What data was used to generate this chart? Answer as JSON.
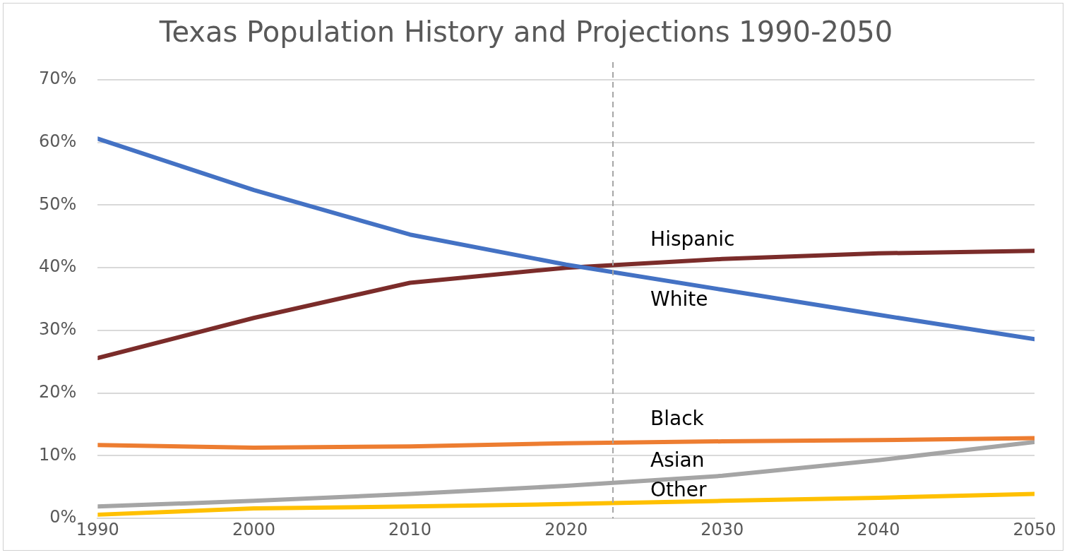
{
  "chart_data": {
    "type": "line",
    "title": "Texas Population History and Projections 1990-2050",
    "x": [
      1990,
      2000,
      2010,
      2020,
      2030,
      2040,
      2050
    ],
    "series": [
      {
        "name": "White",
        "color": "#4472c4",
        "values": [
          60.6,
          52.4,
          45.3,
          40.5,
          36.5,
          32.5,
          28.6
        ]
      },
      {
        "name": "Hispanic",
        "color": "#7b2c2a",
        "values": [
          25.6,
          32.0,
          37.6,
          40.0,
          41.4,
          42.3,
          42.7
        ]
      },
      {
        "name": "Black",
        "color": "#ed7d31",
        "values": [
          11.7,
          11.3,
          11.5,
          12.0,
          12.3,
          12.5,
          12.8
        ]
      },
      {
        "name": "Asian",
        "color": "#a5a5a5",
        "values": [
          1.9,
          2.8,
          3.9,
          5.2,
          6.8,
          9.3,
          12.2
        ]
      },
      {
        "name": "Other",
        "color": "#ffc000",
        "values": [
          0.6,
          1.6,
          1.9,
          2.3,
          2.8,
          3.3,
          3.9
        ]
      }
    ],
    "xlim": [
      1990,
      2050
    ],
    "xticks": [
      1990,
      2000,
      2010,
      2020,
      2030,
      2040,
      2050
    ],
    "ylim": [
      0,
      70
    ],
    "yticks": [
      {
        "value": 0,
        "label": "0%"
      },
      {
        "value": 10,
        "label": "10%"
      },
      {
        "value": 20,
        "label": "20%"
      },
      {
        "value": 30,
        "label": "30%"
      },
      {
        "value": 40,
        "label": "40%"
      },
      {
        "value": 50,
        "label": "50%"
      },
      {
        "value": 60,
        "label": "60%"
      },
      {
        "value": 70,
        "label": "70%"
      }
    ],
    "ref_lines": [
      {
        "axis": "x",
        "value": 2023,
        "color": "#a6a6a6",
        "line_style": "dashed"
      }
    ],
    "grid": "y",
    "legend": false,
    "marker": "none",
    "line_style": "solid"
  }
}
